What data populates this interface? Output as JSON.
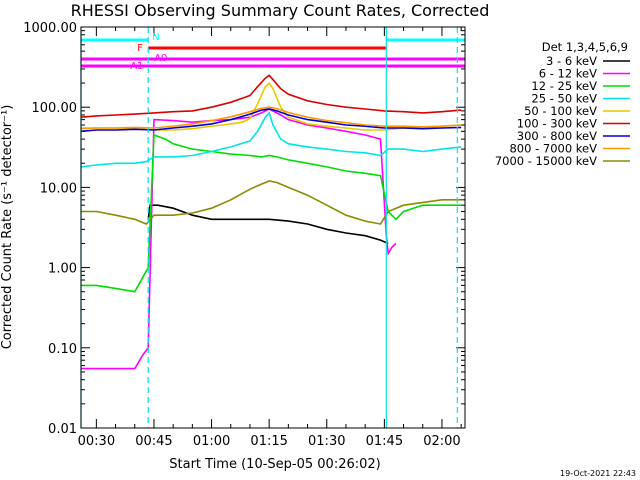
{
  "chart_data": {
    "type": "line",
    "title": "RHESSI Observing Summary Count Rates, Corrected",
    "ylabel": "Corrected Count Rate (s⁻¹ detector⁻¹)",
    "xlabel": "Start Time (10-Sep-05 00:26:02)",
    "yscale": "log",
    "ylim": [
      0.01,
      1000
    ],
    "xlim_minutes": [
      26.0,
      126.0
    ],
    "y_ticks": [
      {
        "value": 1000,
        "label": "1000.00"
      },
      {
        "value": 100,
        "label": "100.00"
      },
      {
        "value": 10,
        "label": "10.00"
      },
      {
        "value": 1,
        "label": "1.00"
      },
      {
        "value": 0.1,
        "label": "0.10"
      },
      {
        "value": 0.01,
        "label": "0.01"
      }
    ],
    "x_ticks": [
      {
        "value": 30,
        "label": "00:30"
      },
      {
        "value": 45,
        "label": "00:45"
      },
      {
        "value": 60,
        "label": "01:00"
      },
      {
        "value": 75,
        "label": "01:15"
      },
      {
        "value": 90,
        "label": "01:30"
      },
      {
        "value": 105,
        "label": "01:45"
      },
      {
        "value": 120,
        "label": "02:00"
      }
    ],
    "legend_title": "Det 1,3,4,5,6,9",
    "series": [
      {
        "name": "3 - 6 keV",
        "color": "#000000",
        "x": [
          43.5,
          44,
          46,
          50,
          55,
          60,
          65,
          70,
          75,
          80,
          85,
          90,
          95,
          100,
          104,
          106
        ],
        "y": [
          4,
          6,
          6,
          5.5,
          4.5,
          4,
          4,
          4,
          4,
          3.8,
          3.5,
          3,
          2.7,
          2.5,
          2.2,
          2
        ]
      },
      {
        "name": "6 - 12 keV",
        "color": "#ff00ff",
        "x": [
          26,
          28,
          30,
          35,
          40,
          42,
          43.5,
          45,
          50,
          55,
          60,
          65,
          70,
          73,
          75,
          78,
          80,
          85,
          90,
          95,
          100,
          104,
          105.5,
          106,
          107,
          108
        ],
        "y": [
          0.055,
          0.055,
          0.055,
          0.055,
          0.055,
          0.08,
          0.1,
          70,
          68,
          65,
          68,
          70,
          75,
          85,
          95,
          80,
          70,
          60,
          55,
          50,
          45,
          40,
          2.5,
          1.5,
          1.8,
          2
        ]
      },
      {
        "name": "12 - 25 keV",
        "color": "#00dd00",
        "x": [
          26,
          30,
          35,
          40,
          43.5,
          45,
          48,
          50,
          55,
          60,
          65,
          70,
          73,
          75,
          77,
          80,
          85,
          90,
          95,
          100,
          104,
          106,
          108,
          110,
          115,
          120,
          125
        ],
        "y": [
          0.6,
          0.6,
          0.55,
          0.5,
          1,
          45,
          40,
          35,
          30,
          28,
          26,
          25,
          24,
          25,
          24,
          22,
          20,
          18,
          16,
          15,
          14,
          5,
          4,
          5,
          6,
          6,
          6
        ]
      },
      {
        "name": "25 - 50 keV",
        "color": "#00e5e5",
        "x": [
          26,
          30,
          35,
          40,
          43,
          45,
          50,
          55,
          60,
          65,
          70,
          72,
          74,
          75,
          76,
          78,
          80,
          85,
          90,
          95,
          100,
          104,
          106,
          110,
          115,
          120,
          125
        ],
        "y": [
          18,
          19,
          20,
          20,
          21,
          24,
          24,
          25,
          28,
          32,
          38,
          50,
          75,
          85,
          60,
          40,
          35,
          32,
          30,
          28,
          27,
          25,
          30,
          30,
          28,
          30,
          32
        ]
      },
      {
        "name": "50 - 100 keV",
        "color": "#e8c900",
        "x": [
          26,
          30,
          35,
          40,
          45,
          50,
          55,
          60,
          65,
          68,
          70,
          72,
          74,
          75,
          76,
          78,
          80,
          85,
          90,
          95,
          100,
          105,
          110,
          115,
          120,
          125
        ],
        "y": [
          55,
          55,
          55,
          54,
          52,
          52,
          54,
          58,
          62,
          65,
          72,
          110,
          180,
          200,
          170,
          100,
          75,
          62,
          58,
          55,
          52,
          52,
          55,
          56,
          58,
          60
        ]
      },
      {
        "name": "100 - 300 keV",
        "color": "#dd0000",
        "x": [
          26,
          30,
          35,
          40,
          45,
          50,
          55,
          60,
          65,
          70,
          72,
          74,
          75,
          76,
          78,
          80,
          85,
          90,
          95,
          100,
          105,
          110,
          115,
          120,
          125
        ],
        "y": [
          75,
          78,
          80,
          82,
          85,
          88,
          90,
          100,
          115,
          140,
          180,
          230,
          250,
          220,
          170,
          145,
          120,
          108,
          100,
          95,
          90,
          88,
          85,
          88,
          92
        ]
      },
      {
        "name": "300 - 800 keV",
        "color": "#0000dd",
        "x": [
          26,
          30,
          35,
          40,
          45,
          50,
          55,
          60,
          65,
          70,
          73,
          75,
          77,
          80,
          85,
          90,
          95,
          100,
          105,
          110,
          115,
          120,
          125
        ],
        "y": [
          50,
          52,
          52,
          53,
          52,
          55,
          58,
          62,
          70,
          82,
          92,
          95,
          90,
          80,
          70,
          65,
          60,
          58,
          55,
          55,
          54,
          55,
          56
        ]
      },
      {
        "name": "800 - 7000 keV",
        "color": "#ff9900",
        "x": [
          26,
          30,
          35,
          40,
          45,
          50,
          55,
          60,
          65,
          70,
          73,
          75,
          77,
          80,
          85,
          90,
          95,
          100,
          105,
          110,
          115,
          120,
          125
        ],
        "y": [
          54,
          55,
          55,
          56,
          55,
          58,
          62,
          68,
          76,
          88,
          97,
          100,
          96,
          86,
          75,
          68,
          64,
          60,
          58,
          58,
          57,
          58,
          60
        ]
      },
      {
        "name": "7000 - 15000 keV",
        "color": "#8b8b00",
        "x": [
          26,
          30,
          35,
          40,
          43,
          45,
          50,
          55,
          60,
          65,
          70,
          73,
          75,
          77,
          80,
          85,
          90,
          95,
          100,
          104,
          106,
          110,
          115,
          120,
          125
        ],
        "y": [
          5,
          5,
          4.5,
          4,
          3.5,
          4.5,
          4.5,
          4.8,
          5.5,
          7,
          9.5,
          11,
          12,
          11.5,
          10,
          8,
          6,
          4.5,
          3.8,
          3.5,
          5,
          6,
          6.5,
          7,
          7
        ]
      }
    ],
    "annotations": {
      "attenuator_state_flags": [
        {
          "label": "F",
          "color": "#ff0000",
          "x_start": 43.5,
          "x_end": 105.5
        },
        {
          "label": "N",
          "color": "#00ffff",
          "x_start": 26,
          "x_end": 43.5
        },
        {
          "label": "N",
          "color": "#00ffff",
          "x_start": 105.5,
          "x_end": 126
        },
        {
          "label": "A0",
          "color": "#ff00ff",
          "x_start": 26,
          "x_end": 126
        },
        {
          "label": "A1",
          "color": "#ff00ff",
          "x_start": 26,
          "x_end": 126
        }
      ],
      "vertical_lines_solid": [
        26,
        105.5
      ],
      "vertical_lines_dashed": [
        43.5,
        124
      ]
    },
    "timestamp": "19-Oct-2021 22:43"
  }
}
